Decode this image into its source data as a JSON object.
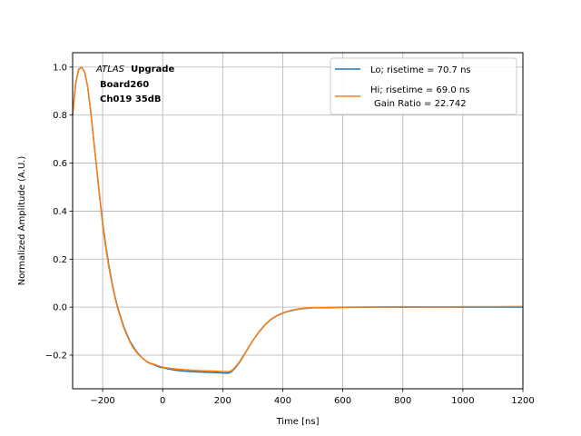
{
  "chart_data": {
    "type": "line",
    "xlabel": "Time [ns]",
    "ylabel": "Normalized Amplitude (A.U.)",
    "xlim": [
      -300,
      1200
    ],
    "ylim": [
      -0.34,
      1.06
    ],
    "xticks": [
      -200,
      0,
      200,
      400,
      600,
      800,
      1000,
      1200
    ],
    "xtick_labels": [
      "−200",
      "0",
      "200",
      "400",
      "600",
      "800",
      "1000",
      "1200"
    ],
    "yticks": [
      -0.2,
      0.0,
      0.2,
      0.4,
      0.6,
      0.8,
      1.0
    ],
    "ytick_labels": [
      "−0.2",
      "0.0",
      "0.2",
      "0.4",
      "0.6",
      "0.8",
      "1.0"
    ],
    "grid": true,
    "legend_position": "top-right",
    "annotation": {
      "experiment": "ATLAS",
      "tag": "Upgrade",
      "board": "Board260",
      "channel": "Ch019 35dB"
    },
    "legend": {
      "lo_label": "Lo; risetime = 70.7 ns",
      "hi_label": "Hi; risetime = 69.0 ns",
      "gain_label": "Gain Ratio = 22.742"
    },
    "series": [
      {
        "name": "Lo; risetime = 70.7 ns",
        "color": "#1f77b4",
        "x": [
          -300,
          -290,
          -280,
          -270,
          -260,
          -250,
          -240,
          -230,
          -220,
          -210,
          -200,
          -190,
          -180,
          -170,
          -160,
          -150,
          -140,
          -130,
          -120,
          -110,
          -100,
          -90,
          -80,
          -70,
          -60,
          -50,
          -40,
          -30,
          -20,
          -10,
          0,
          20,
          40,
          60,
          80,
          100,
          120,
          140,
          160,
          180,
          200,
          220,
          230,
          240,
          250,
          260,
          270,
          280,
          290,
          300,
          320,
          340,
          360,
          380,
          400,
          420,
          440,
          460,
          480,
          500,
          550,
          600,
          700,
          800,
          900,
          1000,
          1100,
          1200
        ],
        "y": [
          0.8,
          0.93,
          0.99,
          1.0,
          0.98,
          0.92,
          0.82,
          0.7,
          0.58,
          0.46,
          0.35,
          0.26,
          0.18,
          0.11,
          0.05,
          0.0,
          -0.04,
          -0.08,
          -0.11,
          -0.14,
          -0.16,
          -0.18,
          -0.195,
          -0.21,
          -0.22,
          -0.23,
          -0.235,
          -0.24,
          -0.245,
          -0.25,
          -0.252,
          -0.258,
          -0.262,
          -0.265,
          -0.267,
          -0.269,
          -0.27,
          -0.271,
          -0.272,
          -0.273,
          -0.274,
          -0.275,
          -0.268,
          -0.255,
          -0.24,
          -0.222,
          -0.202,
          -0.181,
          -0.16,
          -0.14,
          -0.105,
          -0.075,
          -0.052,
          -0.036,
          -0.025,
          -0.017,
          -0.011,
          -0.007,
          -0.005,
          -0.003,
          -0.002,
          -0.001,
          0.0,
          0.0,
          0.0,
          0.0,
          0.0,
          0.0
        ]
      },
      {
        "name": "Hi; risetime = 69.0 ns",
        "color": "#ff7f0e",
        "x": [
          -300,
          -290,
          -280,
          -270,
          -260,
          -250,
          -240,
          -230,
          -220,
          -210,
          -200,
          -190,
          -180,
          -170,
          -160,
          -150,
          -140,
          -130,
          -120,
          -110,
          -100,
          -90,
          -80,
          -70,
          -60,
          -50,
          -40,
          -30,
          -20,
          -10,
          0,
          20,
          40,
          60,
          80,
          100,
          120,
          140,
          160,
          180,
          200,
          220,
          230,
          240,
          250,
          260,
          270,
          280,
          290,
          300,
          320,
          340,
          360,
          380,
          400,
          420,
          440,
          460,
          480,
          500,
          550,
          600,
          700,
          800,
          900,
          1000,
          1100,
          1200
        ],
        "y": [
          0.8,
          0.93,
          0.99,
          1.0,
          0.98,
          0.92,
          0.82,
          0.7,
          0.58,
          0.46,
          0.34,
          0.25,
          0.17,
          0.105,
          0.045,
          -0.005,
          -0.045,
          -0.085,
          -0.115,
          -0.143,
          -0.165,
          -0.183,
          -0.198,
          -0.21,
          -0.22,
          -0.228,
          -0.234,
          -0.238,
          -0.242,
          -0.246,
          -0.25,
          -0.254,
          -0.257,
          -0.259,
          -0.261,
          -0.263,
          -0.264,
          -0.265,
          -0.266,
          -0.267,
          -0.268,
          -0.269,
          -0.264,
          -0.252,
          -0.237,
          -0.219,
          -0.2,
          -0.18,
          -0.159,
          -0.139,
          -0.104,
          -0.074,
          -0.051,
          -0.035,
          -0.024,
          -0.016,
          -0.01,
          -0.006,
          -0.004,
          -0.002,
          -0.001,
          0.0,
          0.001,
          0.002,
          0.001,
          0.002,
          0.002,
          0.003
        ]
      }
    ]
  }
}
